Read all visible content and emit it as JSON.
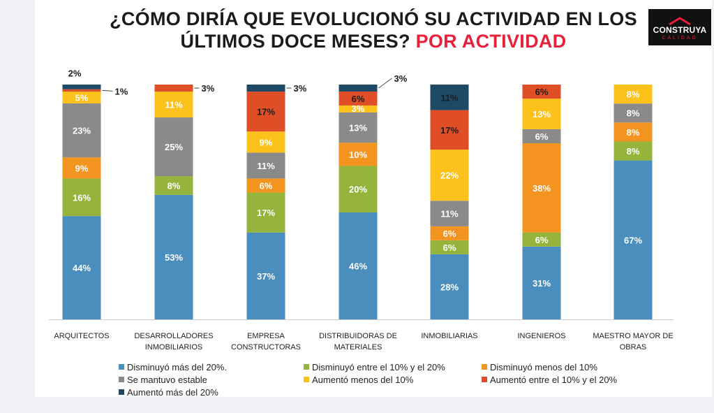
{
  "title": {
    "line1": "¿CÓMO DIRÍA QUE EVOLUCIONÓ SU ACTIVIDAD EN LOS",
    "line2": "ÚLTIMOS DOCE MESES?",
    "accent": "POR ACTIVIDAD"
  },
  "logo": {
    "main": "CONSTRUYA",
    "sub": "CALIDAD"
  },
  "colors": {
    "accent": "#e8213a",
    "series": [
      "#4a8ebd",
      "#95b43c",
      "#f39420",
      "#8a8a8a",
      "#fcc11b",
      "#e04e27",
      "#1f4a66"
    ]
  },
  "chart_data": {
    "type": "bar",
    "stacked": true,
    "title": "¿CÓMO DIRÍA QUE EVOLUCIONÓ SU ACTIVIDAD EN LOS ÚLTIMOS DOCE MESES? POR ACTIVIDAD",
    "categories": [
      "ARQUITECTOS",
      "DESARROLLADORES INMOBILIARIOS",
      "EMPRESA CONSTRUCTORAS",
      "DISTRIBUIDORAS DE MATERIALES",
      "INMOBILIARIAS",
      "INGENIEROS",
      "MAESTRO MAYOR DE OBRAS"
    ],
    "category_lines": [
      [
        "ARQUITECTOS"
      ],
      [
        "DESARROLLADORES",
        "INMOBILIARIOS"
      ],
      [
        "EMPRESA",
        "CONSTRUCTORAS"
      ],
      [
        "DISTRIBUIDORAS DE",
        "MATERIALES"
      ],
      [
        "INMOBILIARIAS"
      ],
      [
        "INGENIEROS"
      ],
      [
        "MAESTRO MAYOR DE",
        "OBRAS"
      ]
    ],
    "series": [
      {
        "name": "Disminuyó más del 20%.",
        "values": [
          44,
          53,
          37,
          46,
          28,
          31,
          67
        ]
      },
      {
        "name": "Disminuyó entre el 10% y el 20%",
        "values": [
          16,
          8,
          17,
          20,
          6,
          6,
          8
        ]
      },
      {
        "name": "Disminuyó menos del 10%",
        "values": [
          9,
          0,
          6,
          10,
          6,
          38,
          8
        ]
      },
      {
        "name": "Se mantuvo estable",
        "values": [
          23,
          25,
          11,
          13,
          11,
          6,
          8
        ]
      },
      {
        "name": "Aumentó menos del 10%",
        "values": [
          5,
          11,
          9,
          3,
          22,
          13,
          8
        ]
      },
      {
        "name": "Aumentó entre el 10% y el 20%",
        "values": [
          1,
          3,
          17,
          6,
          17,
          6,
          0
        ]
      },
      {
        "name": "Aumentó más del 20%",
        "values": [
          2,
          0,
          3,
          3,
          11,
          0,
          0
        ]
      }
    ],
    "data_labels": [
      [
        "44%",
        "16%",
        "9%",
        "23%",
        "5%",
        "1%",
        "2%"
      ],
      [
        "53%",
        "8%",
        "",
        "25%",
        "11%",
        "3%",
        ""
      ],
      [
        "37%",
        "17%",
        "6%",
        "11%",
        "9%",
        "17%",
        "3%"
      ],
      [
        "46%",
        "20%",
        "10%",
        "13%",
        "3%",
        "6%",
        "3%"
      ],
      [
        "28%",
        "6%",
        "6%",
        "11%",
        "22%",
        "17%",
        "11%"
      ],
      [
        "31%",
        "6%",
        "38%",
        "6%",
        "13%",
        "6%",
        ""
      ],
      [
        "67%",
        "8%",
        "8%",
        "8%",
        "8%",
        "",
        ""
      ]
    ],
    "ylim": [
      0,
      100
    ],
    "xlabel": "",
    "ylabel": "",
    "grid": false,
    "legend": "bottom"
  }
}
